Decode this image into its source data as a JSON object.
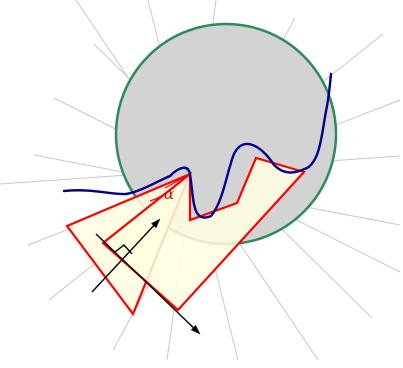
{
  "diagram": {
    "angle_label": "α",
    "colors": {
      "background": "#ffffff",
      "ray_lines": "#c8c8c8",
      "circle_fill": "#d3d3d3",
      "circle_stroke": "#2e8b57",
      "curve": "#00008b",
      "polygon_fill": "#ffffe0",
      "polygon_stroke": "#ff0000",
      "angle_label": "#ff0000",
      "arrows": "#000000"
    }
  }
}
